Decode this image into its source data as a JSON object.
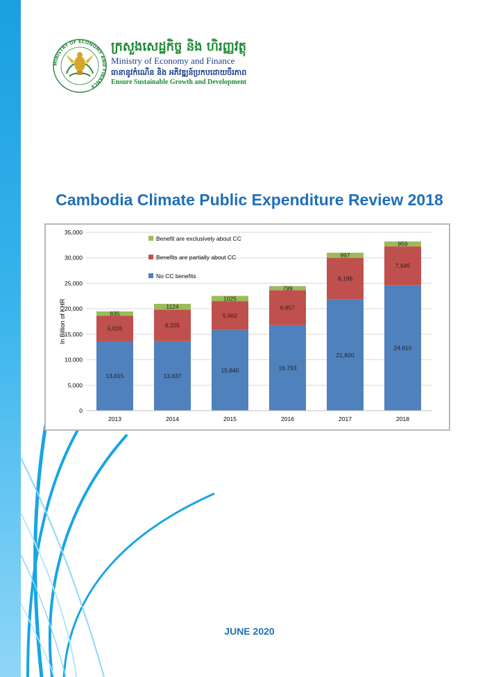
{
  "header": {
    "logo_ring_text": "MINISTRY OF ECONOMY AND FINANCE",
    "ministry_name_khmer": "ក្រសួងសេដ្ឋកិច្ច និង ហិរញ្ញវត្ថុ",
    "ministry_name_en": "Ministry of Economy and Finance",
    "slogan_khmer": "ធានានូវកំណើន និង អភិវឌ្ឍន៍ប្រកបដោយចីរភាព",
    "slogan_en": "Ensure Sustainable Growth and Development"
  },
  "document": {
    "title": "Cambodia Climate Public Expenditure Review 2018",
    "date": "JUNE 2020"
  },
  "colors": {
    "no_cc": "#4f81bd",
    "partial_cc": "#c0504d",
    "exclusive_cc": "#9bbb59",
    "title_blue": "#1f6fb8",
    "stripe_blue": "#1a9fe0"
  },
  "chart_data": {
    "type": "bar",
    "stacked": true,
    "categories": [
      "2013",
      "2014",
      "2015",
      "2016",
      "2017",
      "2018"
    ],
    "series": [
      {
        "name": "No CC benefits",
        "values": [
          13615,
          13637,
          15840,
          16793,
          21820,
          24610
        ],
        "labels": [
          "13,615",
          "13,637",
          "15,840",
          "16,793",
          "21,820",
          "24,610"
        ]
      },
      {
        "name": "Benefits are partially about CC",
        "values": [
          5026,
          6205,
          5662,
          6857,
          8186,
          7645
        ],
        "labels": [
          "5,026",
          "6,205",
          "5,662",
          "6,857",
          "8,186",
          "7,645"
        ]
      },
      {
        "name": "Benefit are exclusively about CC",
        "values": [
          835,
          1124,
          1025,
          799,
          997,
          959
        ],
        "labels": [
          "835",
          "1124",
          "1025",
          "799",
          "997",
          "959"
        ]
      }
    ],
    "ylabel": "In Billion of KHR",
    "ylim": [
      0,
      35000
    ],
    "yticks": [
      0,
      5000,
      10000,
      15000,
      20000,
      25000,
      30000,
      35000
    ],
    "ytick_labels": [
      "0",
      "5,000",
      "10,000",
      "15,000",
      "20,000",
      "25,000",
      "30,000",
      "35,000"
    ],
    "grid": true,
    "legend_position": "top-left",
    "legend_order": [
      2,
      1,
      0
    ]
  }
}
